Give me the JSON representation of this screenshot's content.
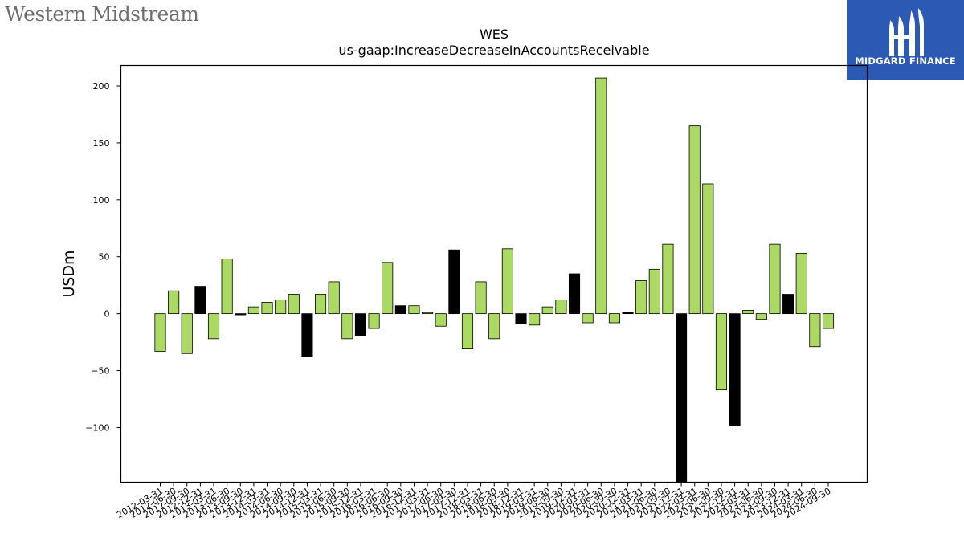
{
  "brand": {
    "company_logo_text": "Western Midstream",
    "badge_text": "MIDGARD FINANCE",
    "badge_color": "#2b59b3"
  },
  "colors": {
    "positive_bar": "#acd963",
    "highlight_bar": "#000000"
  },
  "chart_data": {
    "type": "bar",
    "title": "WES",
    "subtitle": "us-gaap:IncreaseDecreaseInAccountsReceivable",
    "xlabel": "",
    "ylabel": "USDm",
    "ylim": [
      -148,
      218
    ],
    "yticks": [
      -100,
      -50,
      0,
      50,
      100,
      150,
      200
    ],
    "ytick_labels": [
      "−100",
      "−50",
      "0",
      "50",
      "100",
      "150",
      "200"
    ],
    "grid": false,
    "legend": "none",
    "categories": [
      "2012-03-31",
      "2012-06-30",
      "2012-09-30",
      "2012-12-31",
      "2013-03-31",
      "2013-06-30",
      "2013-09-30",
      "2013-12-31",
      "2014-03-31",
      "2014-06-30",
      "2014-09-30",
      "2014-12-31",
      "2015-03-31",
      "2015-06-30",
      "2015-09-30",
      "2015-12-31",
      "2016-03-31",
      "2016-06-30",
      "2016-09-30",
      "2016-12-31",
      "2017-03-31",
      "2017-06-30",
      "2017-09-30",
      "2017-12-31",
      "2018-03-31",
      "2018-06-30",
      "2018-09-30",
      "2018-12-31",
      "2019-03-31",
      "2019-06-30",
      "2019-09-30",
      "2019-12-31",
      "2020-03-31",
      "2020-06-30",
      "2020-09-30",
      "2020-12-31",
      "2021-03-31",
      "2021-06-30",
      "2021-09-30",
      "2021-12-31",
      "2022-03-31",
      "2022-06-30",
      "2022-09-30",
      "2022-12-31",
      "2023-03-31",
      "2023-06-30",
      "2023-09-30",
      "2023-12-31",
      "2024-03-31",
      "2024-06-30",
      "2024-09-30"
    ],
    "values": [
      -33,
      20,
      -35,
      24,
      -22,
      48,
      -1,
      6,
      10,
      12,
      17,
      -38,
      17,
      28,
      -22,
      -19,
      -13,
      45,
      7,
      7,
      1,
      -11,
      56,
      -31,
      28,
      -22,
      57,
      -9,
      -10,
      6,
      12,
      35,
      -8,
      207,
      -8,
      1,
      29,
      39,
      61,
      -148,
      165,
      114,
      -67,
      -98,
      3,
      -5,
      61,
      17,
      53,
      -29,
      -13
    ],
    "highlight_categories": [
      "2012-12-31",
      "2013-09-30",
      "2014-12-31",
      "2015-12-31",
      "2016-09-30",
      "2017-09-30",
      "2018-12-31",
      "2019-12-31",
      "2020-12-31",
      "2021-12-31",
      "2022-12-31",
      "2023-12-31"
    ]
  }
}
